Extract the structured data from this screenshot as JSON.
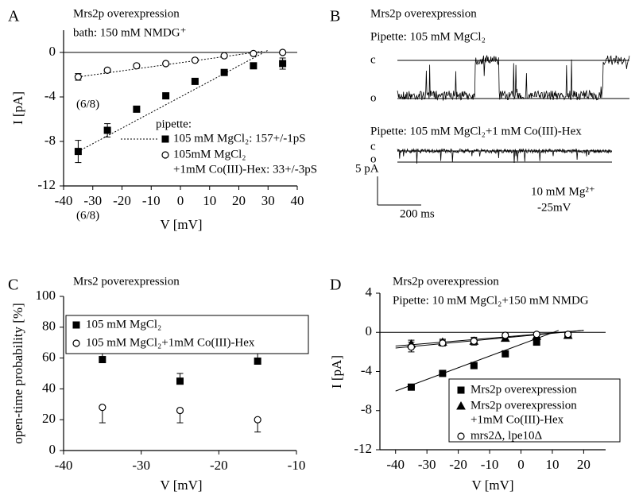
{
  "chart_data": [
    {
      "type": "scatter",
      "label": "A",
      "title": "Mrs2p overexpression",
      "subtitle": "bath: 150 mM NMDG⁺",
      "annotations": [
        "(6/8)",
        "(6/8)"
      ],
      "xlabel": "V [mV]",
      "ylabel": "I [pA]",
      "xlim": [
        -40,
        40
      ],
      "xticks": [
        -40,
        -30,
        -20,
        -10,
        0,
        10,
        20,
        30,
        40
      ],
      "ylim": [
        -12,
        2
      ],
      "yticks": [
        -12,
        -8,
        -4,
        0
      ],
      "zero_line": true,
      "legend_title": "pipette:",
      "legend_box": false,
      "fit_style": "dotted",
      "series": [
        {
          "name": "105 mM MgCl₂: 157+/-1pS",
          "marker": "square",
          "color": "#000000",
          "x": [
            -35,
            -25,
            -15,
            -5,
            5,
            15,
            25,
            35
          ],
          "values": [
            -8.9,
            -7.0,
            -5.1,
            -3.9,
            -2.6,
            -1.8,
            -1.2,
            -1.0
          ],
          "errors": [
            1.0,
            0.6,
            0.2,
            0.1,
            0.1,
            0.1,
            0.2,
            0.5
          ],
          "error_dir": "both"
        },
        {
          "name": [
            "105mM MgCl₂",
            "+1mM Co(III)-Hex: 33+/-3pS"
          ],
          "marker": "circle",
          "color": "#000000",
          "x": [
            -35,
            -25,
            -15,
            -5,
            5,
            15,
            25,
            35
          ],
          "values": [
            -2.2,
            -1.6,
            -1.2,
            -1.0,
            -0.7,
            -0.3,
            -0.1,
            0.0
          ],
          "errors": [
            0.3,
            0.1,
            0.1,
            0.1,
            0.1,
            0.1,
            0.1,
            0.1
          ],
          "error_dir": "both"
        }
      ],
      "fits": [
        {
          "x": [
            -35,
            30
          ],
          "values": [
            -8.9,
            0.2
          ]
        },
        {
          "x": [
            -35,
            28
          ],
          "values": [
            -2.2,
            0.1
          ]
        }
      ]
    },
    {
      "type": "trace",
      "label": "B",
      "annotations": [
        "Mrs2p overexpression",
        "Pipette: 105 mM MgCl₂",
        "c",
        "o",
        "Pipette: 105 mM MgCl₂+1 mM Co(III)-Hex",
        "c",
        "o",
        "5 pA",
        "200 ms",
        "10 mM Mg²⁺",
        "-25mV"
      ]
    },
    {
      "type": "scatter",
      "label": "C",
      "title": "Mrs2 poverexpression",
      "annotations": [],
      "xlabel": "V [mV]",
      "ylabel": "open-time probability [%]",
      "xlim": [
        -40,
        -10
      ],
      "xticks": [
        -40,
        -30,
        -20,
        -10
      ],
      "ylim": [
        0,
        100
      ],
      "yticks": [
        0,
        20,
        40,
        60,
        80,
        100
      ],
      "zero_line": false,
      "legend_box": true,
      "series": [
        {
          "name": "105 mM MgCl₂",
          "marker": "square",
          "color": "#000000",
          "x": [
            -35,
            -25,
            -15
          ],
          "values": [
            59,
            45,
            58
          ],
          "errors": [
            15,
            5,
            7
          ],
          "error_dir": "up"
        },
        {
          "name": "105 mM MgCl₂+1mM Co(III)-Hex",
          "marker": "circle",
          "color": "#000000",
          "x": [
            -35,
            -25,
            -15
          ],
          "values": [
            28,
            26,
            20
          ],
          "errors": [
            10,
            8,
            8
          ],
          "error_dir": "down"
        }
      ],
      "fits": []
    },
    {
      "type": "scatter",
      "label": "D",
      "title": "Mrs2p overexpression",
      "subtitle": "Pipette: 10 mM MgCl₂+150 mM NMDG",
      "annotations": [],
      "xlabel": "V [mV]",
      "ylabel": "I [pA]",
      "xlim": [
        -45,
        27
      ],
      "xticks": [
        -40,
        -30,
        -20,
        -10,
        0,
        10,
        20
      ],
      "ylim": [
        -12,
        4
      ],
      "yticks": [
        -12,
        -8,
        -4,
        0,
        4
      ],
      "zero_line": true,
      "legend_box": true,
      "fit_style": "solid",
      "series": [
        {
          "name": "Mrs2p overexpression",
          "marker": "square",
          "color": "#000000",
          "x": [
            -35,
            -25,
            -15,
            -5,
            5,
            15
          ],
          "values": [
            -5.6,
            -4.2,
            -3.4,
            -2.2,
            -1.0,
            -0.3
          ],
          "errors": [
            0.1,
            0.1,
            0.1,
            0.1,
            0.1,
            0.1
          ],
          "error_dir": "both"
        },
        {
          "name": [
            "Mrs2p overexpression",
            "+1mM Co(III)-Hex"
          ],
          "marker": "triangle",
          "color": "#000000",
          "x": [
            -35,
            -25,
            -15,
            -5,
            5,
            15
          ],
          "values": [
            -1.2,
            -1.0,
            -0.9,
            -0.6,
            -0.4,
            -0.3
          ],
          "errors": [
            0.4,
            0.3,
            0.3,
            0.2,
            0.1,
            0.1
          ],
          "error_dir": "both"
        },
        {
          "name": "mrs2Δ, lpe10Δ",
          "marker": "circle",
          "color": "#000000",
          "x": [
            -35,
            -25,
            -15,
            -5,
            5,
            15
          ],
          "values": [
            -1.5,
            -1.1,
            -0.9,
            -0.3,
            -0.2,
            -0.2
          ],
          "errors": [
            0.5,
            0.3,
            0.4,
            0.2,
            0.1,
            0.1
          ],
          "error_dir": "both"
        }
      ],
      "fits": [
        {
          "x": [
            -40,
            12
          ],
          "values": [
            -6.0,
            0.2
          ]
        },
        {
          "x": [
            -40,
            20
          ],
          "values": [
            -1.6,
            0.2
          ]
        },
        {
          "x": [
            -40,
            20
          ],
          "values": [
            -1.4,
            0.2
          ]
        }
      ]
    }
  ]
}
